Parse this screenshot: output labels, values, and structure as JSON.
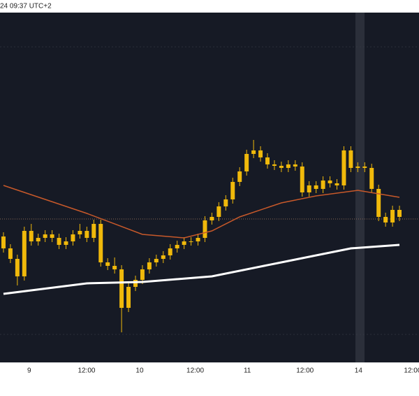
{
  "chart_data": {
    "type": "candlestick",
    "header": "24 09:37 UTC+2",
    "color": "#f0b90b",
    "xlim": [
      -0.5,
      57.5
    ],
    "ylim": [
      0,
      500
    ],
    "xticks": [
      {
        "value": 3.7,
        "label": "9"
      },
      {
        "value": 11.96,
        "label": "12:00"
      },
      {
        "value": 19.6,
        "label": "10"
      },
      {
        "value": 27.6,
        "label": "12:00"
      },
      {
        "value": 35.1,
        "label": "11"
      },
      {
        "value": 43.4,
        "label": "12:00"
      },
      {
        "value": 51.1,
        "label": "14"
      },
      {
        "value": 58.9,
        "label": "12:00"
      }
    ],
    "price_line": 205,
    "open": [
      180,
      163,
      148,
      123,
      188,
      173,
      178,
      183,
      178,
      168,
      173,
      183,
      188,
      178,
      198,
      143,
      138,
      133,
      78,
      108,
      118,
      133,
      143,
      148,
      153,
      163,
      168,
      173,
      173,
      178,
      203,
      208,
      223,
      233,
      258,
      273,
      298,
      303,
      293,
      283,
      281,
      278,
      283,
      280,
      243,
      253,
      248,
      260,
      256,
      253,
      303,
      278,
      280,
      278,
      248,
      208,
      200,
      218
    ],
    "high": [
      186,
      169,
      154,
      194,
      198,
      184,
      189,
      189,
      184,
      179,
      189,
      198,
      194,
      204,
      204,
      149,
      150,
      139,
      114,
      124,
      139,
      149,
      154,
      159,
      169,
      174,
      179,
      179,
      184,
      209,
      214,
      229,
      239,
      264,
      279,
      304,
      318,
      309,
      299,
      289,
      287,
      289,
      289,
      286,
      259,
      259,
      266,
      266,
      262,
      309,
      309,
      286,
      286,
      284,
      254,
      214,
      224,
      224
    ],
    "low": [
      157,
      142,
      110,
      117,
      167,
      167,
      172,
      172,
      162,
      162,
      167,
      177,
      172,
      172,
      137,
      132,
      127,
      43,
      72,
      102,
      112,
      127,
      137,
      142,
      147,
      157,
      162,
      167,
      167,
      172,
      197,
      202,
      217,
      227,
      252,
      267,
      292,
      287,
      277,
      275,
      272,
      272,
      274,
      237,
      237,
      242,
      242,
      250,
      247,
      247,
      272,
      272,
      272,
      242,
      202,
      194,
      194,
      202
    ],
    "close": [
      163,
      148,
      123,
      188,
      173,
      178,
      183,
      178,
      168,
      173,
      183,
      188,
      178,
      198,
      143,
      138,
      133,
      78,
      108,
      118,
      133,
      143,
      148,
      153,
      163,
      168,
      173,
      173,
      178,
      203,
      208,
      223,
      233,
      258,
      273,
      298,
      303,
      293,
      283,
      281,
      278,
      283,
      280,
      243,
      253,
      248,
      260,
      256,
      253,
      303,
      278,
      280,
      278,
      248,
      208,
      200,
      218,
      208
    ],
    "lines": [
      {
        "color": "#c8592a",
        "x": [
          0,
          12,
          20,
          26,
          30,
          34,
          40,
          45,
          51,
          57
        ],
        "values": [
          253,
          213,
          183,
          178,
          188,
          208,
          228,
          238,
          246,
          236
        ]
      },
      {
        "color": "#ffffff",
        "x": [
          0,
          12,
          20,
          30,
          40,
          50,
          57
        ],
        "values": [
          98,
          113,
          115,
          123,
          143,
          163,
          168
        ]
      }
    ]
  }
}
